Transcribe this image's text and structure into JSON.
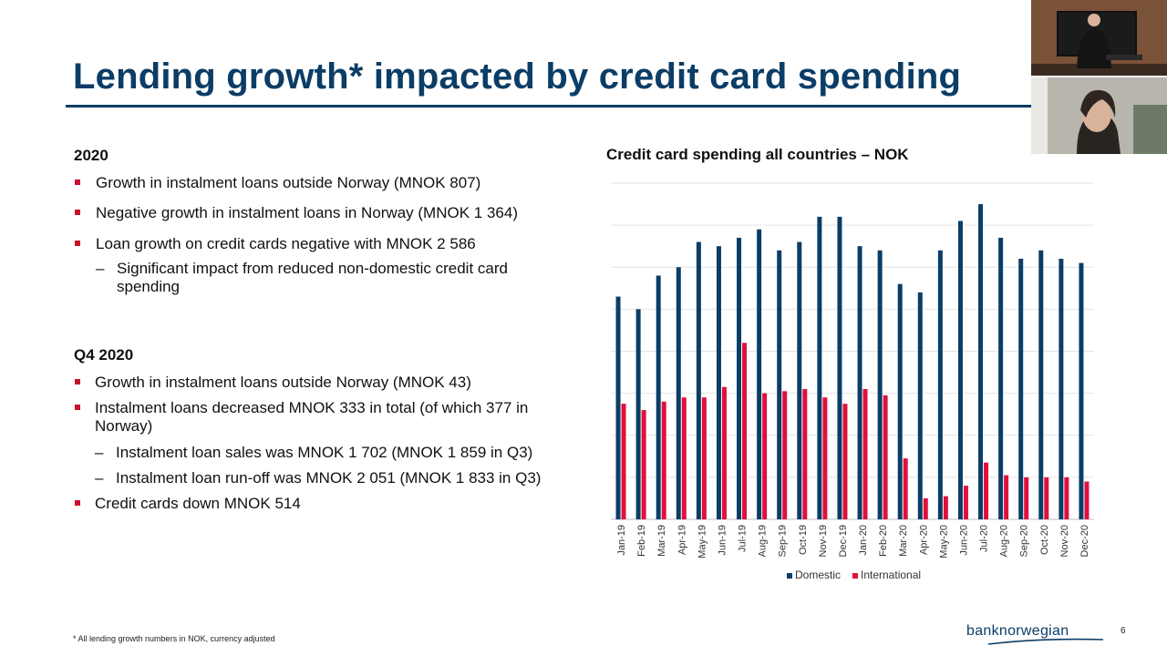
{
  "slide": {
    "title": "Lending growth* impacted by credit card spending",
    "page_number": "6",
    "footnote": "* All lending growth numbers in NOK, currency adjusted",
    "logo_text": "banknorwegian"
  },
  "left": {
    "section1_heading": "2020",
    "section1_bullets": [
      "Growth in instalment loans outside Norway (MNOK 807)",
      "Negative growth in instalment loans in Norway (MNOK 1 364)",
      "Loan growth on credit cards negative with MNOK 2 586"
    ],
    "section1_sub": "Significant impact from reduced non-domestic credit card spending",
    "section2_heading": "Q4 2020",
    "section2_bullets": [
      "Growth in instalment loans outside Norway (MNOK 43)",
      "Instalment loans decreased MNOK 333 in total (of which 377 in Norway)",
      "Credit cards down MNOK 514"
    ],
    "section2_subs": [
      "Instalment loan sales was MNOK 1 702 (MNOK 1 859 in Q3)",
      "Instalment loan run-off was MNOK 2 051 (MNOK 1 833 in Q3)"
    ],
    "dash": "–"
  },
  "chart_data": {
    "type": "bar",
    "title": "Credit card spending all countries – NOK",
    "categories": [
      "Jan-19",
      "Feb-19",
      "Mar-19",
      "Apr-19",
      "May-19",
      "Jun-19",
      "Jul-19",
      "Aug-19",
      "Sep-19",
      "Oct-19",
      "Nov-19",
      "Dec-19",
      "Jan-20",
      "Feb-20",
      "Mar-20",
      "Apr-20",
      "May-20",
      "Jun-20",
      "Jul-20",
      "Aug-20",
      "Sep-20",
      "Oct-20",
      "Nov-20",
      "Dec-20"
    ],
    "series": [
      {
        "name": "Domestic",
        "color": "#0b3d66",
        "values": [
          53,
          50,
          58,
          60,
          66,
          65,
          67,
          69,
          64,
          66,
          72,
          72,
          65,
          64,
          56,
          54,
          64,
          71,
          75,
          67,
          62,
          64,
          62,
          61
        ]
      },
      {
        "name": "International",
        "color": "#e0103e",
        "values": [
          27.5,
          26,
          28,
          29,
          29,
          31.5,
          42,
          30,
          30.5,
          31,
          29,
          27.5,
          31,
          29.5,
          14.5,
          5,
          5.5,
          8,
          13.5,
          10.5,
          10,
          10,
          10,
          9
        ]
      }
    ],
    "ylim": [
      0,
      80
    ],
    "gridlines": 8,
    "grid": true,
    "legend_position": "bottom-center"
  },
  "colors": {
    "title": "#0b3d66",
    "accent": "#c8102e",
    "domestic": "#0b3d66",
    "international": "#e0103e"
  }
}
